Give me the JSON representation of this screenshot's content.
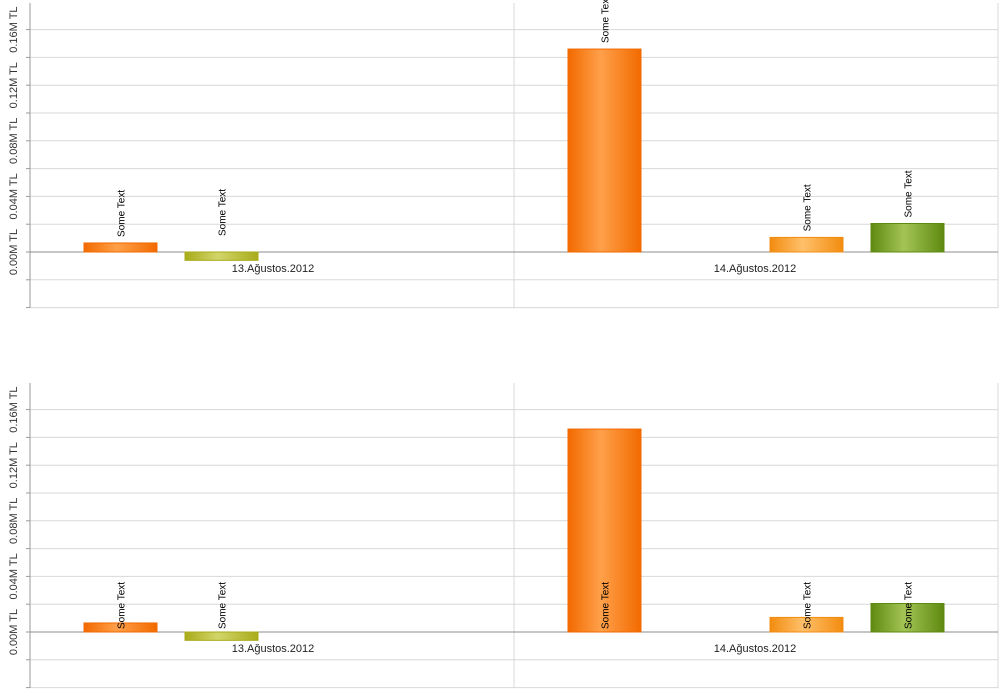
{
  "colors": {
    "orange_dark": "#f26a00",
    "orange_light": "#ffa04a",
    "amber_dark": "#f28c10",
    "amber_light": "#ffc06a",
    "olive_dark": "#a8ab1a",
    "olive_light": "#d2d66a",
    "green_dark": "#5e8a10",
    "green_light": "#a4c456",
    "grid": "#d8d8d8",
    "axis": "#9a9a9a"
  },
  "chart_data": [
    {
      "type": "bar",
      "categories": [
        "13.Ağustos.2012",
        "14.Ağustos.2012"
      ],
      "y_ticks": [
        "0.00M TL",
        "0.04M TL",
        "0.08M TL",
        "0.12M TL",
        "0.16M TL"
      ],
      "ylim": [
        -0.04,
        0.18
      ],
      "grid": true,
      "label_position": "above",
      "bars": [
        {
          "category": 0,
          "slot": 0,
          "value": 0.0065,
          "color": "orange",
          "label": "Some Text"
        },
        {
          "category": 0,
          "slot": 1,
          "value": -0.006,
          "color": "olive",
          "label": "Some Text"
        },
        {
          "category": 1,
          "slot": 0,
          "value": 0.146,
          "color": "orange",
          "label": "Some Text"
        },
        {
          "category": 1,
          "slot": 2,
          "value": 0.0105,
          "color": "amber",
          "label": "Some Text"
        },
        {
          "category": 1,
          "slot": 3,
          "value": 0.0205,
          "color": "green",
          "label": "Some Text"
        }
      ]
    },
    {
      "type": "bar",
      "categories": [
        "13.Ağustos.2012",
        "14.Ağustos.2012"
      ],
      "y_ticks": [
        "0.00M TL",
        "0.04M TL",
        "0.08M TL",
        "0.12M TL",
        "0.16M TL"
      ],
      "ylim": [
        -0.04,
        0.18
      ],
      "grid": true,
      "label_position": "inside-base",
      "bars": [
        {
          "category": 0,
          "slot": 0,
          "value": 0.0065,
          "color": "orange",
          "label": "Some Text"
        },
        {
          "category": 0,
          "slot": 1,
          "value": -0.006,
          "color": "olive",
          "label": "Some Text"
        },
        {
          "category": 1,
          "slot": 0,
          "value": 0.146,
          "color": "orange",
          "label": "Some Text"
        },
        {
          "category": 1,
          "slot": 2,
          "value": 0.0105,
          "color": "amber",
          "label": "Some Text"
        },
        {
          "category": 1,
          "slot": 3,
          "value": 0.0205,
          "color": "green",
          "label": "Some Text"
        }
      ]
    }
  ]
}
